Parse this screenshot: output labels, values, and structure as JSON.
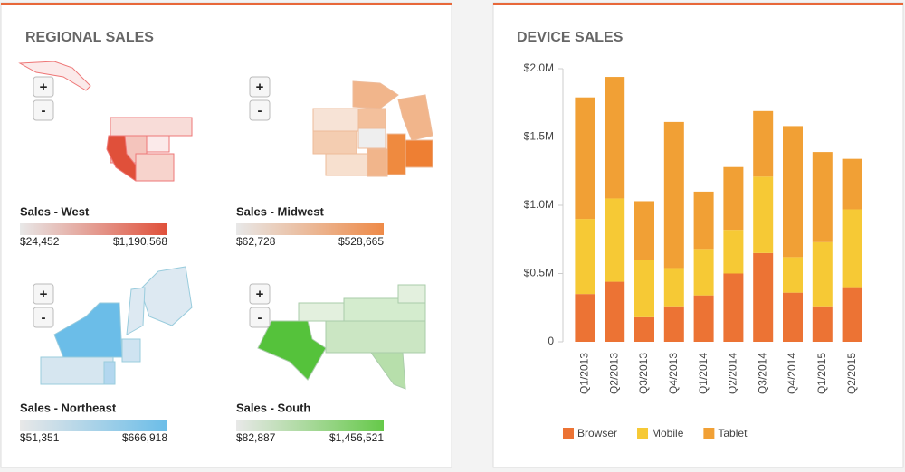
{
  "regional": {
    "title": "REGIONAL SALES",
    "zoom_in": "+",
    "zoom_out": "-",
    "maps": [
      {
        "label": "Sales - West",
        "min": "$24,452",
        "max": "$1,190,568",
        "color": "#e0503a"
      },
      {
        "label": "Sales - Midwest",
        "min": "$62,728",
        "max": "$528,665",
        "color": "#ee8a48"
      },
      {
        "label": "Sales - Northeast",
        "min": "$51,351",
        "max": "$666,918",
        "color": "#6bbde8"
      },
      {
        "label": "Sales - South",
        "min": "$82,887",
        "max": "$1,456,521",
        "color": "#66c94a"
      }
    ]
  },
  "chart_data": {
    "type": "stacked_bar",
    "title": "DEVICE SALES",
    "categories": [
      "Q1/2013",
      "Q2/2013",
      "Q3/2013",
      "Q4/2013",
      "Q1/2014",
      "Q2/2014",
      "Q3/2014",
      "Q4/2014",
      "Q1/2015",
      "Q2/2015"
    ],
    "series": [
      {
        "name": "Browser",
        "color": "#ec7334",
        "values": [
          350000,
          440000,
          180000,
          260000,
          340000,
          500000,
          650000,
          360000,
          260000,
          400000
        ]
      },
      {
        "name": "Mobile",
        "color": "#f6c935",
        "values": [
          550000,
          610000,
          420000,
          280000,
          340000,
          320000,
          560000,
          260000,
          470000,
          570000
        ]
      },
      {
        "name": "Tablet",
        "color": "#f1a035",
        "values": [
          890000,
          890000,
          430000,
          1070000,
          420000,
          460000,
          480000,
          960000,
          660000,
          370000
        ]
      }
    ],
    "ylim": [
      0,
      2000000
    ],
    "yticks": [
      0,
      {
        "value": 500000,
        "label": "$0.5M"
      },
      {
        "value": 1000000,
        "label": "$1.0M"
      },
      {
        "value": 1500000,
        "label": "$1.5M"
      },
      {
        "value": 2000000,
        "label": "$2.0M"
      }
    ],
    "legend": "bottom"
  }
}
